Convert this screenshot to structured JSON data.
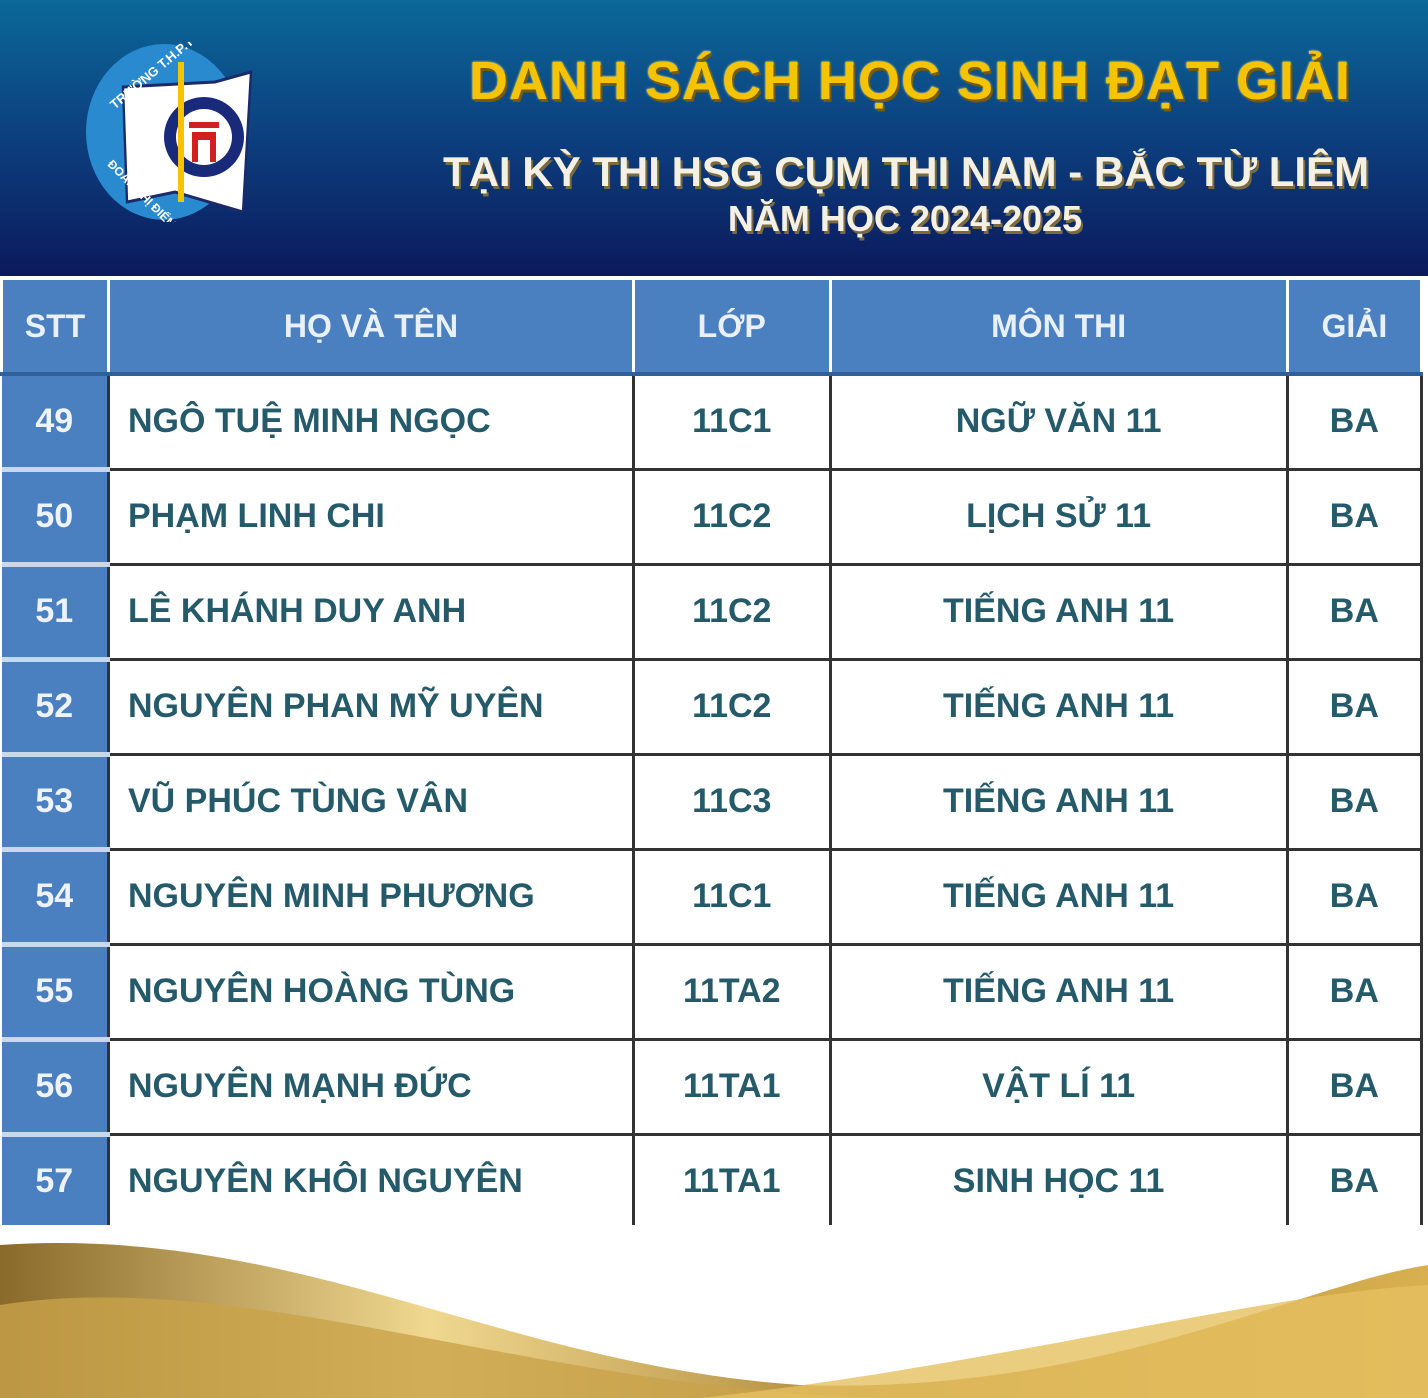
{
  "header": {
    "logo_text_top": "TRƯỜNG T.H.P.T",
    "logo_text_bottom": "ĐOÀN THỊ ĐIỂM",
    "title": "DANH SÁCH HỌC SINH ĐẠT GIẢI",
    "subtitle": "TẠI KỲ THI HSG CỤM THI NAM - BẮC TỪ LIÊM",
    "year": "NĂM HỌC 2024-2025"
  },
  "table": {
    "columns": [
      "STT",
      "HỌ VÀ TÊN",
      "LỚP",
      "MÔN THI",
      "GIẢI"
    ],
    "rows": [
      [
        "49",
        "NGÔ TUỆ MINH NGỌC",
        "11C1",
        "NGỮ VĂN 11",
        "BA"
      ],
      [
        "50",
        "PHẠM LINH CHI",
        "11C2",
        "LỊCH SỬ 11",
        "BA"
      ],
      [
        "51",
        "LÊ KHÁNH DUY ANH",
        "11C2",
        "TIẾNG ANH 11",
        "BA"
      ],
      [
        "52",
        "NGUYÊN PHAN MỸ UYÊN",
        "11C2",
        "TIẾNG ANH 11",
        "BA"
      ],
      [
        "53",
        "VŨ PHÚC TÙNG VÂN",
        "11C3",
        "TIẾNG ANH 11",
        "BA"
      ],
      [
        "54",
        "NGUYÊN MINH PHƯƠNG",
        "11C1",
        "TIẾNG ANH 11",
        "BA"
      ],
      [
        "55",
        "NGUYÊN HOÀNG TÙNG",
        "11TA2",
        "TIẾNG ANH 11",
        "BA"
      ],
      [
        "56",
        "NGUYÊN MẠNH ĐỨC",
        "11TA1",
        "VẬT LÍ 11",
        "BA"
      ],
      [
        "57",
        "NGUYÊN KHÔI NGUYÊN",
        "11TA1",
        "SINH HỌC 11",
        "BA"
      ]
    ]
  },
  "colors": {
    "header_top": "#0b6898",
    "header_bottom": "#0b1a5c",
    "table_header": "#4a7fc0",
    "title_gold": "#f5c400",
    "text": "#245a6a"
  }
}
